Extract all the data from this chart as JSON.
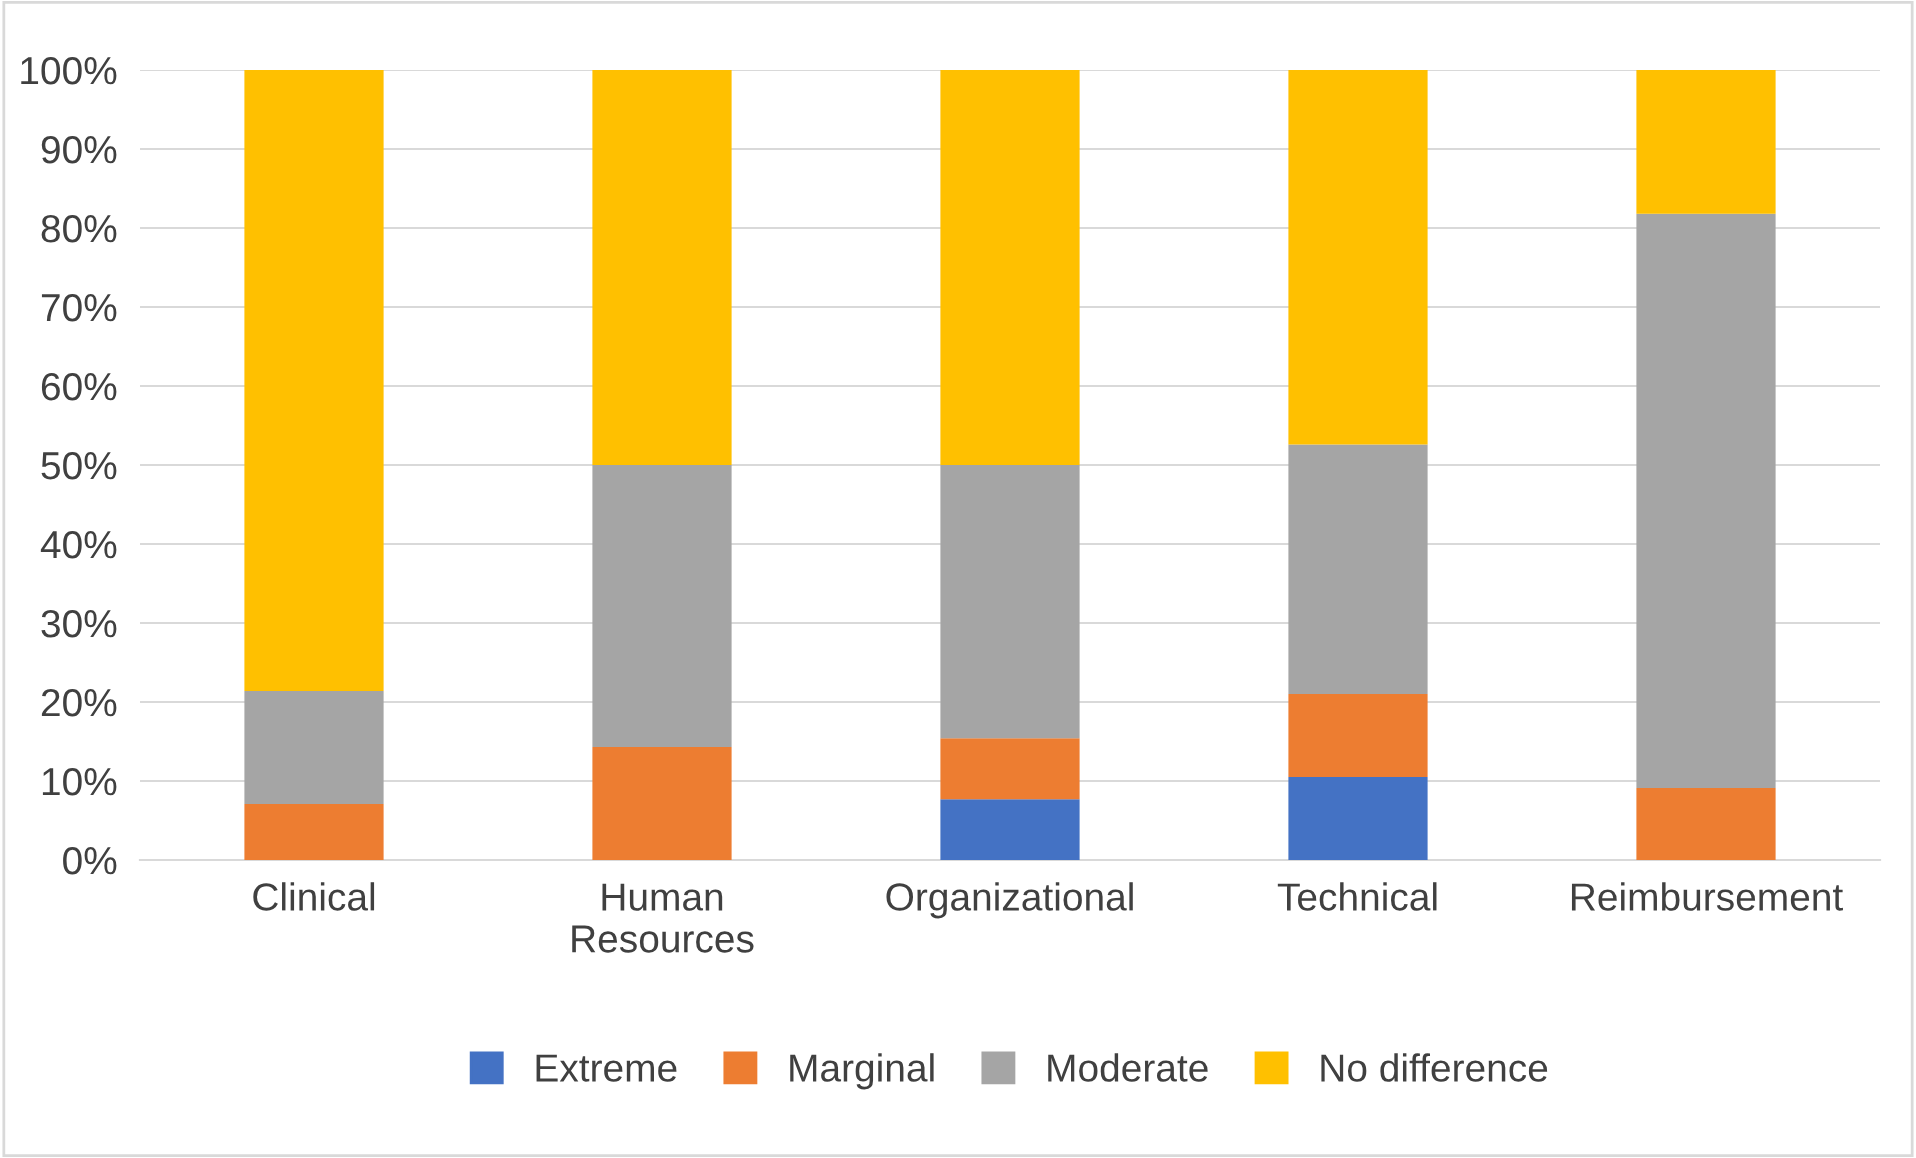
{
  "chart_data": {
    "type": "bar",
    "stacked": true,
    "categories": [
      "Clinical",
      "Human\nResources",
      "Organizational",
      "Technical",
      "Reimbursement"
    ],
    "series": [
      {
        "name": "Extreme",
        "color": "#4472c4",
        "values": [
          0,
          0,
          7.7,
          10.5,
          0
        ]
      },
      {
        "name": "Marginal",
        "color": "#ed7d31",
        "values": [
          7.1,
          14.3,
          7.7,
          10.5,
          9.1
        ]
      },
      {
        "name": "Moderate",
        "color": "#a5a5a5",
        "values": [
          14.3,
          35.7,
          34.6,
          31.6,
          72.7
        ]
      },
      {
        "name": "No difference",
        "color": "#ffc000",
        "values": [
          78.6,
          50,
          50,
          47.4,
          18.2
        ]
      }
    ],
    "ylim": [
      0,
      100
    ],
    "yticks": [
      {
        "value": 0,
        "label": "0%"
      },
      {
        "value": 10,
        "label": "10%"
      },
      {
        "value": 20,
        "label": "20%"
      },
      {
        "value": 30,
        "label": "30%"
      },
      {
        "value": 40,
        "label": "40%"
      },
      {
        "value": 50,
        "label": "50%"
      },
      {
        "value": 60,
        "label": "60%"
      },
      {
        "value": 70,
        "label": "70%"
      },
      {
        "value": 80,
        "label": "80%"
      },
      {
        "value": 90,
        "label": "90%"
      },
      {
        "value": 100,
        "label": "100%"
      }
    ],
    "grid": "y",
    "legend": "bottom"
  }
}
